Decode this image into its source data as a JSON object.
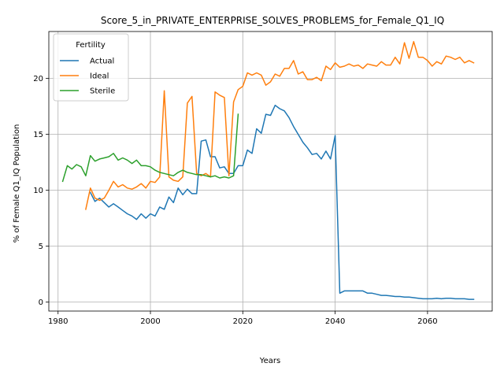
{
  "chart_data": {
    "type": "line",
    "title": "Score_5_in_PRIVATE_ENTERPRISE_SOLVES_PROBLEMS_for_Female_Q1_IQ",
    "xlabel": "Years",
    "ylabel": "% of Female Q1_IQ Population",
    "xlim": [
      1978,
      2074
    ],
    "ylim": [
      -0.8,
      24.2
    ],
    "xticks": [
      1980,
      2000,
      2020,
      2040,
      2060
    ],
    "yticks": [
      0,
      5,
      10,
      15,
      20
    ],
    "grid": true,
    "legend": {
      "title": "Fertility",
      "position": "top-left"
    },
    "series": [
      {
        "name": "Actual",
        "color": "#1f77b4",
        "x": [
          1987,
          1988,
          1989,
          1990,
          1991,
          1992,
          1993,
          1994,
          1995,
          1996,
          1997,
          1998,
          1999,
          2000,
          2001,
          2002,
          2003,
          2004,
          2005,
          2006,
          2007,
          2008,
          2009,
          2010,
          2011,
          2012,
          2013,
          2014,
          2015,
          2016,
          2017,
          2018,
          2019,
          2020,
          2021,
          2022,
          2023,
          2024,
          2025,
          2026,
          2027,
          2028,
          2029,
          2030,
          2031,
          2032,
          2033,
          2034,
          2035,
          2036,
          2037,
          2038,
          2039,
          2040,
          2041,
          2042,
          2043,
          2044,
          2045,
          2046,
          2047,
          2048,
          2049,
          2050,
          2051,
          2052,
          2053,
          2054,
          2055,
          2056,
          2057,
          2058,
          2059,
          2060,
          2061,
          2062,
          2063,
          2064,
          2065,
          2066,
          2067,
          2068,
          2069,
          2070
        ],
        "values": [
          9.8,
          9.0,
          9.3,
          8.9,
          8.5,
          8.8,
          8.5,
          8.2,
          7.9,
          7.7,
          7.4,
          7.9,
          7.5,
          7.9,
          7.7,
          8.5,
          8.3,
          9.4,
          8.9,
          10.2,
          9.6,
          10.1,
          9.7,
          9.7,
          14.4,
          14.5,
          13.0,
          13.0,
          12.0,
          12.1,
          11.5,
          11.5,
          12.2,
          12.2,
          13.6,
          13.3,
          15.5,
          15.1,
          16.8,
          16.7,
          17.6,
          17.3,
          17.1,
          16.5,
          15.7,
          15.0,
          14.3,
          13.8,
          13.2,
          13.3,
          12.8,
          13.5,
          12.8,
          14.9,
          0.8,
          1.0,
          1.0,
          1.0,
          1.0,
          1.0,
          0.8,
          0.8,
          0.7,
          0.6,
          0.6,
          0.55,
          0.5,
          0.5,
          0.45,
          0.45,
          0.4,
          0.35,
          0.3,
          0.3,
          0.3,
          0.35,
          0.3,
          0.35,
          0.35,
          0.3,
          0.3,
          0.3,
          0.25,
          0.25
        ]
      },
      {
        "name": "Ideal",
        "color": "#ff7f0e",
        "x": [
          1986,
          1987,
          1988,
          1989,
          1990,
          1991,
          1992,
          1993,
          1994,
          1995,
          1996,
          1997,
          1998,
          1999,
          2000,
          2001,
          2002,
          2003,
          2004,
          2005,
          2006,
          2007,
          2008,
          2009,
          2010,
          2011,
          2012,
          2013,
          2014,
          2015,
          2016,
          2017,
          2018,
          2019,
          2020,
          2021,
          2022,
          2023,
          2024,
          2025,
          2026,
          2027,
          2028,
          2029,
          2030,
          2031,
          2032,
          2033,
          2034,
          2035,
          2036,
          2037,
          2038,
          2039,
          2040,
          2041,
          2042,
          2043,
          2044,
          2045,
          2046,
          2047,
          2048,
          2049,
          2050,
          2051,
          2052,
          2053,
          2054,
          2055,
          2056,
          2057,
          2058,
          2059,
          2060,
          2061,
          2062,
          2063,
          2064,
          2065,
          2066,
          2067,
          2068,
          2069,
          2070
        ],
        "values": [
          8.3,
          10.2,
          9.3,
          9.1,
          9.3,
          10.0,
          10.8,
          10.3,
          10.5,
          10.2,
          10.1,
          10.3,
          10.6,
          10.2,
          10.8,
          10.7,
          11.2,
          18.9,
          11.2,
          10.9,
          10.8,
          11.2,
          17.8,
          18.4,
          11.5,
          11.3,
          11.5,
          11.2,
          18.8,
          18.5,
          18.3,
          11.3,
          17.9,
          19.0,
          19.3,
          20.5,
          20.3,
          20.5,
          20.3,
          19.4,
          19.7,
          20.4,
          20.2,
          20.9,
          20.9,
          21.6,
          20.4,
          20.6,
          19.9,
          19.9,
          20.1,
          19.8,
          21.1,
          20.8,
          21.4,
          21.0,
          21.1,
          21.3,
          21.1,
          21.2,
          20.9,
          21.3,
          21.2,
          21.1,
          21.5,
          21.2,
          21.2,
          21.9,
          21.3,
          23.2,
          21.8,
          23.3,
          21.9,
          21.9,
          21.6,
          21.1,
          21.5,
          21.3,
          22.0,
          21.9,
          21.7,
          21.9,
          21.4,
          21.6,
          21.4
        ]
      },
      {
        "name": "Sterile",
        "color": "#2ca02c",
        "x": [
          1981,
          1982,
          1983,
          1984,
          1985,
          1986,
          1987,
          1988,
          1989,
          1990,
          1991,
          1992,
          1993,
          1994,
          1995,
          1996,
          1997,
          1998,
          1999,
          2000,
          2001,
          2002,
          2003,
          2004,
          2005,
          2006,
          2007,
          2008,
          2009,
          2010,
          2011,
          2012,
          2013,
          2014,
          2015,
          2016,
          2017,
          2018,
          2019
        ],
        "values": [
          10.8,
          12.2,
          11.9,
          12.3,
          12.1,
          11.3,
          13.1,
          12.6,
          12.8,
          12.9,
          13.0,
          13.3,
          12.7,
          12.9,
          12.7,
          12.4,
          12.7,
          12.2,
          12.2,
          12.1,
          11.8,
          11.6,
          11.5,
          11.4,
          11.3,
          11.6,
          11.8,
          11.6,
          11.5,
          11.4,
          11.4,
          11.3,
          11.2,
          11.3,
          11.1,
          11.2,
          11.1,
          11.3,
          16.8
        ]
      }
    ]
  }
}
